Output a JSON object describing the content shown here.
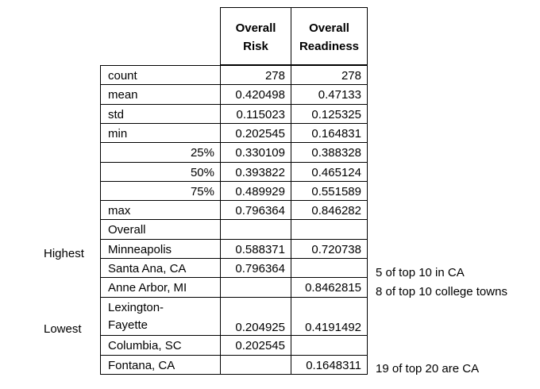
{
  "headers": {
    "col1": [
      "Overall",
      "Risk"
    ],
    "col2": [
      "Overall",
      "Readiness"
    ]
  },
  "rows": [
    {
      "label": "count",
      "align": "left",
      "risk": "278",
      "readiness": "278"
    },
    {
      "label": "mean",
      "align": "left",
      "risk": "0.420498",
      "readiness": "0.47133"
    },
    {
      "label": "std",
      "align": "left",
      "risk": "0.115023",
      "readiness": "0.125325"
    },
    {
      "label": "min",
      "align": "left",
      "risk": "0.202545",
      "readiness": "0.164831"
    },
    {
      "label": "25%",
      "align": "right",
      "risk": "0.330109",
      "readiness": "0.388328"
    },
    {
      "label": "50%",
      "align": "right",
      "risk": "0.393822",
      "readiness": "0.465124"
    },
    {
      "label": "75%",
      "align": "right",
      "risk": "0.489929",
      "readiness": "0.551589"
    },
    {
      "label": "max",
      "align": "left",
      "risk": "0.796364",
      "readiness": "0.846282"
    },
    {
      "label": "Overall",
      "align": "left",
      "risk": "",
      "readiness": ""
    },
    {
      "label": "Minneapolis",
      "align": "left",
      "risk": "0.588371",
      "readiness": "0.720738"
    },
    {
      "label": "Santa Ana, CA",
      "align": "left",
      "risk": "0.796364",
      "readiness": ""
    },
    {
      "label": "Anne Arbor, MI",
      "align": "left",
      "risk": "",
      "readiness": "0.8462815"
    },
    {
      "label": "Lexington-Fayette",
      "align": "left",
      "risk": "0.204925",
      "readiness": "0.4191492"
    },
    {
      "label": "Columbia, SC",
      "align": "left",
      "risk": "0.202545",
      "readiness": ""
    },
    {
      "label": "Fontana, CA",
      "align": "left",
      "risk": "",
      "readiness": "0.1648311"
    }
  ],
  "lexington_lines": [
    "Lexington-",
    "Fayette"
  ],
  "side_labels": {
    "highest": "Highest",
    "lowest": "Lowest"
  },
  "notes": {
    "santa_ana": "5 of top 10 in CA",
    "anne_arbor": "8 of top 10 college towns",
    "fontana": "19 of top 20 are CA"
  }
}
